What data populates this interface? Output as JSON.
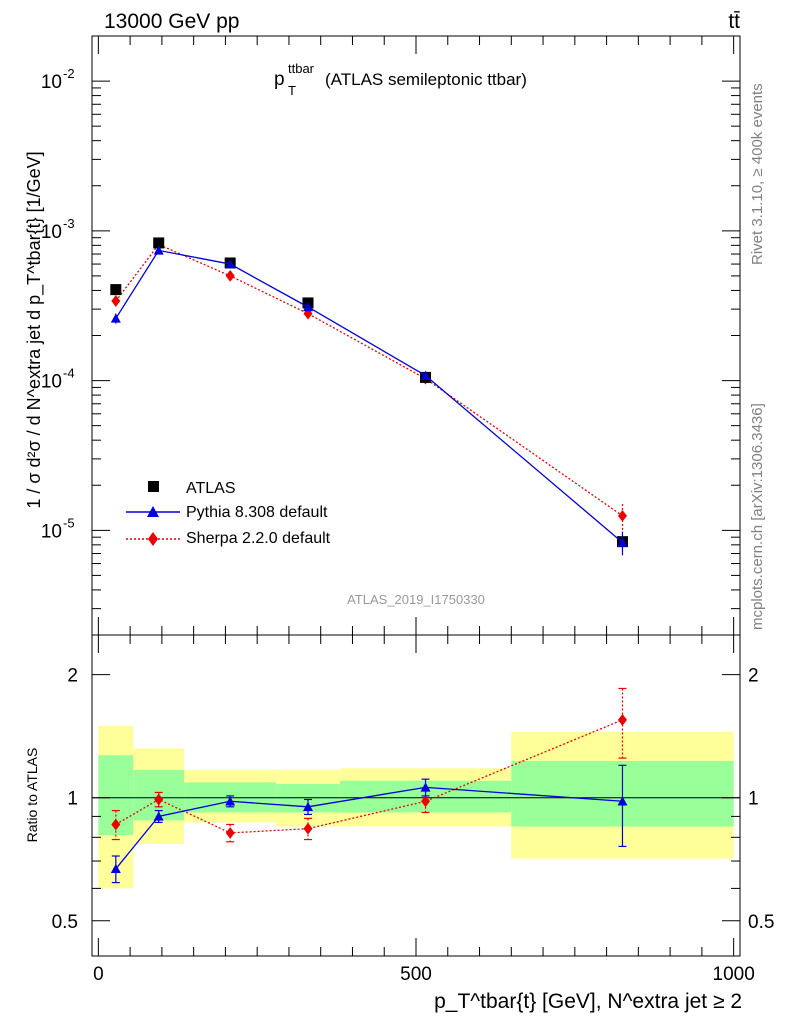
{
  "header": {
    "left": "13000 GeV pp",
    "right": "tt̄"
  },
  "side": {
    "rivet": "Rivet 3.1.10, ≥ 400k events",
    "mcplots": "mcplots.cern.ch [arXiv:1306.3436]"
  },
  "main": {
    "title_main": "p",
    "title_sub": "T",
    "title_sup": "ttbar",
    "title_rest": " (ATLAS semileptonic ttbar)",
    "analysis": "ATLAS_2019_I1750330",
    "ylabel": "1 / σ d²σ / d N^extra jet d p_T^tbar{t} [1/GeV]",
    "ytick_base": "10",
    "ytick_exps": [
      "-5",
      "-4",
      "-3",
      "-2"
    ]
  },
  "ratio": {
    "ylabel": "Ratio to ATLAS",
    "yticks": [
      "0.5",
      "1",
      "2"
    ]
  },
  "xaxis": {
    "ticks": [
      "0",
      "500",
      "1000"
    ],
    "label": "p_T^tbar{t} [GeV], N^extra jet ≥ 2"
  },
  "legend": [
    "ATLAS",
    "Pythia 8.308 default",
    "Sherpa 2.2.0 default"
  ],
  "colors": {
    "atlas": "#000000",
    "pythia": "#0000dd",
    "sherpa": "#ee0000",
    "band_inner": "#99ff99",
    "band_outer": "#ffff99"
  },
  "chart_data": {
    "type": "scatter",
    "x_bins": [
      [
        0,
        55
      ],
      [
        55,
        135
      ],
      [
        135,
        280
      ],
      [
        280,
        380
      ],
      [
        380,
        650
      ],
      [
        650,
        1000
      ]
    ],
    "x_centers": [
      27.5,
      95,
      207.5,
      330,
      515,
      825
    ],
    "xlim": [
      -10,
      1010
    ],
    "ylim_main": [
      2e-06,
      0.02
    ],
    "ylim_ratio": [
      0.41,
      2.5
    ],
    "log_y": true,
    "series": [
      {
        "name": "ATLAS",
        "values": [
          0.000405,
          0.00083,
          0.00061,
          0.00033,
          0.000105,
          8.4e-06
        ]
      },
      {
        "name": "Pythia 8.308 default",
        "values": [
          0.00026,
          0.00074,
          0.0006,
          0.00031,
          0.000108,
          8.3e-06
        ],
        "err": [
          2e-05,
          3e-05,
          2e-05,
          1e-05,
          4e-06,
          1.5e-06
        ]
      },
      {
        "name": "Sherpa 2.2.0 default",
        "values": [
          0.00034,
          0.00081,
          0.0005,
          0.00028,
          0.000103,
          1.25e-05
        ],
        "err": [
          3e-05,
          4e-05,
          3e-05,
          1.5e-05,
          6e-06,
          2.5e-06
        ]
      }
    ],
    "ratio_series": [
      {
        "name": "Pythia 8.308 default",
        "values": [
          0.67,
          0.9,
          0.98,
          0.95,
          1.06,
          0.98
        ],
        "err": [
          0.05,
          0.03,
          0.03,
          0.04,
          0.05,
          0.22
        ]
      },
      {
        "name": "Sherpa 2.2.0 default",
        "values": [
          0.86,
          0.99,
          0.82,
          0.84,
          0.98,
          1.55
        ],
        "err": [
          0.07,
          0.04,
          0.04,
          0.05,
          0.06,
          0.3
        ]
      }
    ],
    "ratio_band_inner": [
      [
        0.81,
        1.27
      ],
      [
        0.88,
        1.17
      ],
      [
        0.92,
        1.09
      ],
      [
        0.92,
        1.08
      ],
      [
        0.92,
        1.1
      ],
      [
        0.85,
        1.23
      ]
    ],
    "ratio_band_outer": [
      [
        0.6,
        1.5
      ],
      [
        0.77,
        1.32
      ],
      [
        0.87,
        1.17
      ],
      [
        0.85,
        1.17
      ],
      [
        0.85,
        1.18
      ],
      [
        0.71,
        1.45
      ]
    ]
  }
}
